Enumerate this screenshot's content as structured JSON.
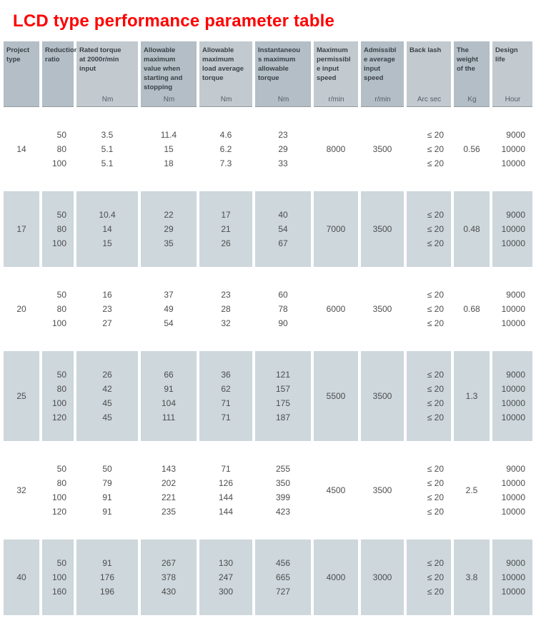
{
  "title": "LCD type performance parameter table",
  "colors": {
    "title": "#fe0000",
    "header_dark": "#b3bec6",
    "header_light": "#c2cad0",
    "band": "#cdd7dc",
    "text": "#4d4d4d"
  },
  "chart_data": {
    "type": "table",
    "title": "LCD type performance parameter table",
    "columns": [
      {
        "label": "Project\ntype",
        "unit": "",
        "tone": "dark",
        "align": "center"
      },
      {
        "label": "Reduction\nratio",
        "unit": "",
        "tone": "dark",
        "align": "right"
      },
      {
        "label": "Rated torque\nat 2000r/min\ninput",
        "unit": "Nm",
        "tone": "light",
        "align": "center"
      },
      {
        "label": "Allowable\nmaximum\nvalue when\nstarting and\nstopping",
        "unit": "Nm",
        "tone": "dark",
        "align": "center"
      },
      {
        "label": "Allowable\nmaximum\nload average\ntorque",
        "unit": "Nm",
        "tone": "light",
        "align": "center"
      },
      {
        "label": "Instantaneou\ns maximum\nallowable\ntorque",
        "unit": "Nm",
        "tone": "dark",
        "align": "center"
      },
      {
        "label": "Maximum\npermissibl\ne input\nspeed",
        "unit": "r/min",
        "tone": "light",
        "align": "center"
      },
      {
        "label": "Admissibl\ne average\ninput\nspeed",
        "unit": "r/min",
        "tone": "dark",
        "align": "center"
      },
      {
        "label": "Back lash",
        "unit": "Arc sec",
        "tone": "light",
        "align": "right"
      },
      {
        "label": "The\nweight\nof the",
        "unit": "Kg",
        "tone": "dark",
        "align": "center"
      },
      {
        "label": "Design\nlife",
        "unit": "Hour",
        "tone": "light",
        "align": "right"
      }
    ],
    "groups": [
      {
        "shaded": false,
        "cells": [
          "14",
          "50\n80\n100",
          "3.5\n5.1\n5.1",
          "11.4\n15\n18",
          "4.6\n6.2\n7.3",
          "23\n29\n33",
          "8000",
          "3500",
          "≤ 20\n≤ 20\n≤ 20",
          "0.56",
          "9000\n10000\n10000"
        ]
      },
      {
        "shaded": true,
        "cells": [
          "17",
          "50\n80\n100",
          "10.4\n14\n15",
          "22\n29\n35",
          "17\n21\n26",
          "40\n54\n67",
          "7000",
          "3500",
          "≤ 20\n≤ 20\n≤ 20",
          "0.48",
          "9000\n10000\n10000"
        ]
      },
      {
        "shaded": false,
        "cells": [
          "20",
          "50\n80\n100",
          "16\n23\n27",
          "37\n49\n54",
          "23\n28\n32",
          "60\n78\n90",
          "6000",
          "3500",
          "≤ 20\n≤ 20\n≤ 20",
          "0.68",
          "9000\n10000\n10000"
        ]
      },
      {
        "shaded": true,
        "cells": [
          "25",
          "50\n80\n100\n120",
          "26\n42\n45\n45",
          "66\n91\n104\n111",
          "36\n62\n71\n71",
          "121\n157\n175\n187",
          "5500",
          "3500",
          "≤ 20\n≤ 20\n≤ 20\n≤ 20",
          "1.3",
          "9000\n10000\n10000\n10000"
        ]
      },
      {
        "shaded": false,
        "cells": [
          "32",
          "50\n80\n100\n120",
          "50\n79\n91\n91",
          "143\n202\n221\n235",
          "71\n126\n144\n144",
          "255\n350\n399\n423",
          "4500",
          "3500",
          "≤ 20\n≤ 20\n≤ 20\n≤ 20",
          "2.5",
          "9000\n10000\n10000\n10000"
        ]
      },
      {
        "shaded": true,
        "cells": [
          "40",
          "50\n100\n160",
          "91\n176\n196",
          "267\n378\n430",
          "130\n247\n300",
          "456\n665\n727",
          "4000",
          "3000",
          "≤ 20\n≤ 20\n≤ 20",
          "3.8",
          "9000\n10000\n10000"
        ]
      }
    ]
  }
}
